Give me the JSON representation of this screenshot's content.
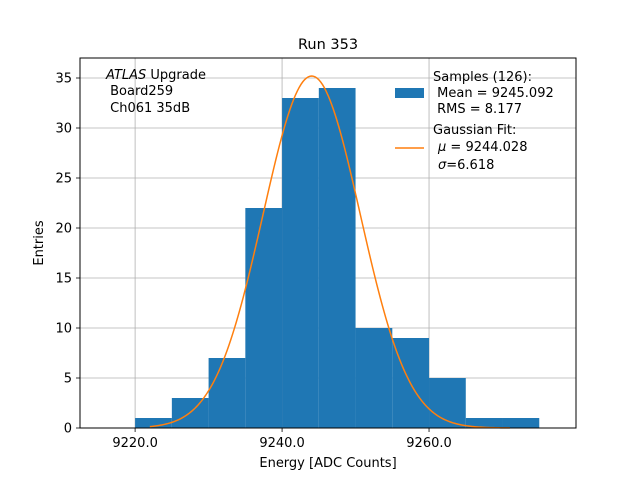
{
  "chart_data": {
    "type": "bar",
    "title": "Run 353",
    "xlabel": "Energy [ADC Counts]",
    "ylabel": "Entries",
    "xlim": [
      9212.5,
      9280.0
    ],
    "ylim": [
      0,
      37
    ],
    "x_ticks": [
      9220.0,
      9240.0,
      9260.0
    ],
    "x_tick_labels": [
      "9220.0",
      "9240.0",
      "9260.0"
    ],
    "y_ticks": [
      0,
      5,
      10,
      15,
      20,
      25,
      30,
      35
    ],
    "grid": true,
    "bin_width": 5,
    "bins": [
      {
        "x0": 9220,
        "x1": 9225,
        "count": 1
      },
      {
        "x0": 9225,
        "x1": 9230,
        "count": 3
      },
      {
        "x0": 9230,
        "x1": 9235,
        "count": 7
      },
      {
        "x0": 9235,
        "x1": 9240,
        "count": 22
      },
      {
        "x0": 9240,
        "x1": 9245,
        "count": 33
      },
      {
        "x0": 9245,
        "x1": 9250,
        "count": 34
      },
      {
        "x0": 9250,
        "x1": 9255,
        "count": 10
      },
      {
        "x0": 9255,
        "x1": 9260,
        "count": 9
      },
      {
        "x0": 9260,
        "x1": 9265,
        "count": 5
      },
      {
        "x0": 9265,
        "x1": 9270,
        "count": 1
      },
      {
        "x0": 9270,
        "x1": 9275,
        "count": 1
      }
    ],
    "fit": {
      "type": "gaussian",
      "amplitude": 35.2,
      "mu": 9244.028,
      "sigma": 6.618,
      "x_range": [
        9222.0,
        9271.0
      ]
    },
    "colors": {
      "bars": "#1f77b4",
      "fit": "#ff7f0e",
      "grid": "#b0b0b0"
    },
    "annotation": {
      "line1_italic": "ATLAS",
      "line1_rest": " Upgrade",
      "line2": " Board259",
      "line3": " Ch061 35dB"
    },
    "legend": {
      "placement": "top-right",
      "samples_lines": [
        "Samples (126):",
        " Mean = 9245.092",
        " RMS = 8.177"
      ],
      "fit_line1": "Gaussian Fit:",
      "fit_mu_symbol": "μ",
      "fit_mu_rest": " = 9244.028",
      "fit_sigma_symbol": "σ",
      "fit_sigma_rest": "=6.618"
    }
  }
}
